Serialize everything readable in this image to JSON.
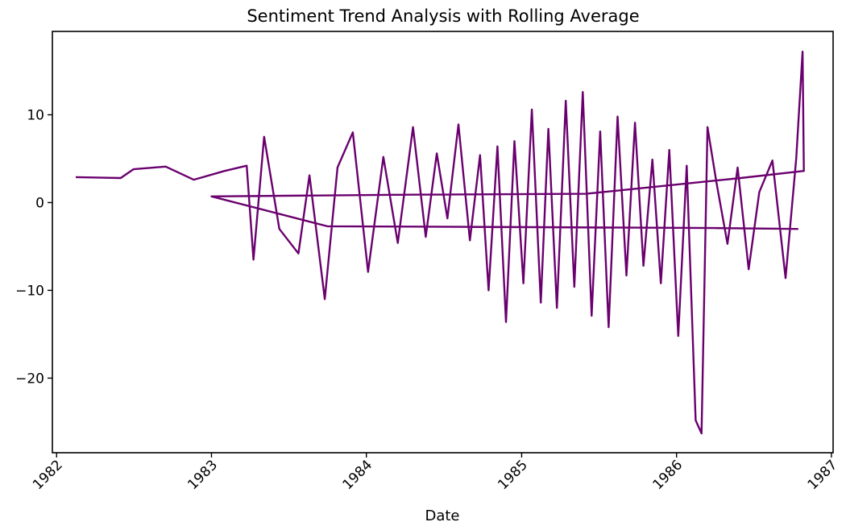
{
  "chart_data": {
    "type": "line",
    "title": "Sentiment Trend Analysis with Rolling Average",
    "xlabel": "Date",
    "ylabel": "",
    "x_ticks": [
      "1982",
      "1983",
      "1984",
      "1985",
      "1986",
      "1987"
    ],
    "y_ticks": [
      "10",
      "0",
      "−10",
      "−20"
    ],
    "xlim": [
      "1981-12-22",
      "1987-01-05"
    ],
    "ylim": [
      -28.5,
      19.5
    ],
    "grid": false,
    "legend": "none",
    "series": [
      {
        "color": "#6a006e",
        "points": [
          [
            "1982-02-15",
            2.9
          ],
          [
            "1982-06-01",
            2.8
          ],
          [
            "1982-07-01",
            3.8
          ],
          [
            "1982-09-15",
            4.1
          ],
          [
            "1982-11-20",
            2.6
          ],
          [
            "1983-02-01",
            3.6
          ],
          [
            "1983-03-25",
            4.2
          ],
          [
            "1983-04-10",
            -6.5
          ],
          [
            "1983-05-05",
            7.5
          ],
          [
            "1983-06-10",
            -3.0
          ],
          [
            "1983-07-25",
            -5.8
          ],
          [
            "1983-08-20",
            3.1
          ],
          [
            "1983-09-25",
            -11.0
          ],
          [
            "1983-10-25",
            4.0
          ],
          [
            "1983-11-30",
            8.0
          ],
          [
            "1984-01-05",
            -7.9
          ],
          [
            "1984-02-10",
            5.2
          ],
          [
            "1984-03-15",
            -4.6
          ],
          [
            "1984-04-20",
            8.6
          ],
          [
            "1984-05-20",
            -3.9
          ],
          [
            "1984-06-15",
            5.6
          ],
          [
            "1984-07-10",
            -1.8
          ],
          [
            "1984-08-05",
            8.9
          ],
          [
            "1984-09-01",
            -4.3
          ],
          [
            "1984-09-25",
            5.4
          ],
          [
            "1984-10-15",
            -10.0
          ],
          [
            "1984-11-05",
            6.4
          ],
          [
            "1984-11-25",
            -13.6
          ],
          [
            "1984-12-15",
            7.0
          ],
          [
            "1985-01-05",
            -9.2
          ],
          [
            "1985-01-25",
            10.6
          ],
          [
            "1985-02-15",
            -11.4
          ],
          [
            "1985-03-05",
            8.4
          ],
          [
            "1985-03-25",
            -12.0
          ],
          [
            "1985-04-15",
            11.6
          ],
          [
            "1985-05-05",
            -9.6
          ],
          [
            "1985-05-25",
            12.6
          ],
          [
            "1985-06-15",
            -12.9
          ],
          [
            "1985-07-05",
            8.1
          ],
          [
            "1985-07-25",
            -14.2
          ],
          [
            "1985-08-15",
            9.8
          ],
          [
            "1985-09-05",
            -8.3
          ],
          [
            "1985-09-25",
            9.1
          ],
          [
            "1985-10-15",
            -7.2
          ],
          [
            "1985-11-05",
            4.9
          ],
          [
            "1985-11-25",
            -9.2
          ],
          [
            "1985-12-15",
            6.0
          ],
          [
            "1986-01-05",
            -15.2
          ],
          [
            "1986-01-25",
            4.2
          ],
          [
            "1986-02-15",
            -24.8
          ],
          [
            "1986-03-01",
            -26.3
          ],
          [
            "1986-03-15",
            8.6
          ],
          [
            "1986-04-05",
            2.3
          ],
          [
            "1986-05-01",
            -4.7
          ],
          [
            "1986-05-25",
            4.0
          ],
          [
            "1986-06-20",
            -7.6
          ],
          [
            "1986-07-15",
            1.2
          ],
          [
            "1986-08-15",
            4.8
          ],
          [
            "1986-09-15",
            -8.6
          ],
          [
            "1986-10-10",
            5.0
          ],
          [
            "1986-10-25",
            17.2
          ],
          [
            "1986-10-28",
            3.6
          ],
          [
            "1986-06-01",
            2.8
          ],
          [
            "1985-06-01",
            1.0
          ],
          [
            "1984-04-01",
            0.9
          ],
          [
            "1983-01-01",
            0.7
          ],
          [
            "1983-10-01",
            -2.7
          ],
          [
            "1985-02-01",
            -2.8
          ],
          [
            "1986-04-01",
            -2.9
          ],
          [
            "1986-10-15",
            -3.0
          ]
        ]
      }
    ]
  }
}
